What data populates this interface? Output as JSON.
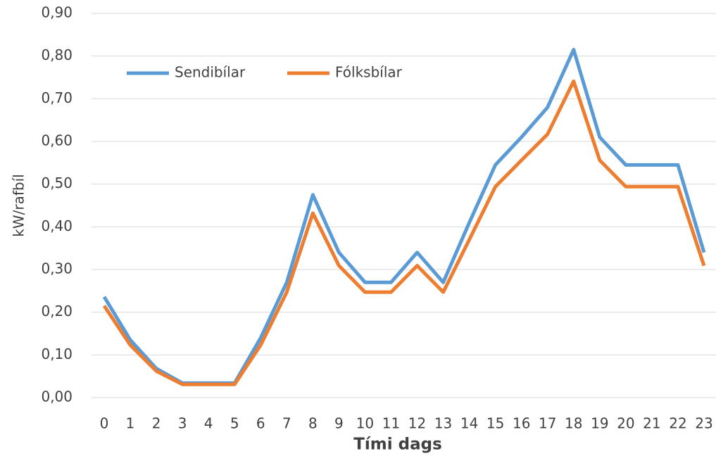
{
  "chart_data": {
    "type": "line",
    "x_label": "Tími dags",
    "y_label": "kW/rafbíl",
    "categories": [
      "0",
      "1",
      "2",
      "3",
      "4",
      "5",
      "6",
      "7",
      "8",
      "9",
      "10",
      "11",
      "12",
      "13",
      "14",
      "15",
      "16",
      "17",
      "18",
      "19",
      "20",
      "21",
      "22",
      "23"
    ],
    "series": [
      {
        "name": "Sendibílar",
        "color": "#5b9bd5",
        "values": [
          0.236,
          0.135,
          0.068,
          0.034,
          0.034,
          0.034,
          0.14,
          0.27,
          0.475,
          0.34,
          0.27,
          0.27,
          0.34,
          0.27,
          0.41,
          0.545,
          0.61,
          0.68,
          0.815,
          0.61,
          0.545,
          0.545,
          0.545,
          0.34
        ]
      },
      {
        "name": "Fólksbílar",
        "color": "#ed7d31",
        "values": [
          0.215,
          0.123,
          0.062,
          0.031,
          0.031,
          0.031,
          0.123,
          0.247,
          0.432,
          0.309,
          0.247,
          0.247,
          0.309,
          0.247,
          0.37,
          0.494,
          0.556,
          0.617,
          0.741,
          0.556,
          0.494,
          0.494,
          0.494,
          0.309
        ]
      }
    ],
    "ylim": [
      0,
      0.9
    ],
    "yticks": [
      {
        "value": 0,
        "label": "0,00"
      },
      {
        "value": 0.1,
        "label": "0,10"
      },
      {
        "value": 0.2,
        "label": "0,20"
      },
      {
        "value": 0.3,
        "label": "0,30"
      },
      {
        "value": 0.4,
        "label": "0,40"
      },
      {
        "value": 0.5,
        "label": "0,50"
      },
      {
        "value": 0.6,
        "label": "0,60"
      },
      {
        "value": 0.7,
        "label": "0,70"
      },
      {
        "value": 0.8,
        "label": "0,80"
      },
      {
        "value": 0.9,
        "label": "0,90"
      }
    ],
    "grid": true,
    "legend": "top-left"
  }
}
